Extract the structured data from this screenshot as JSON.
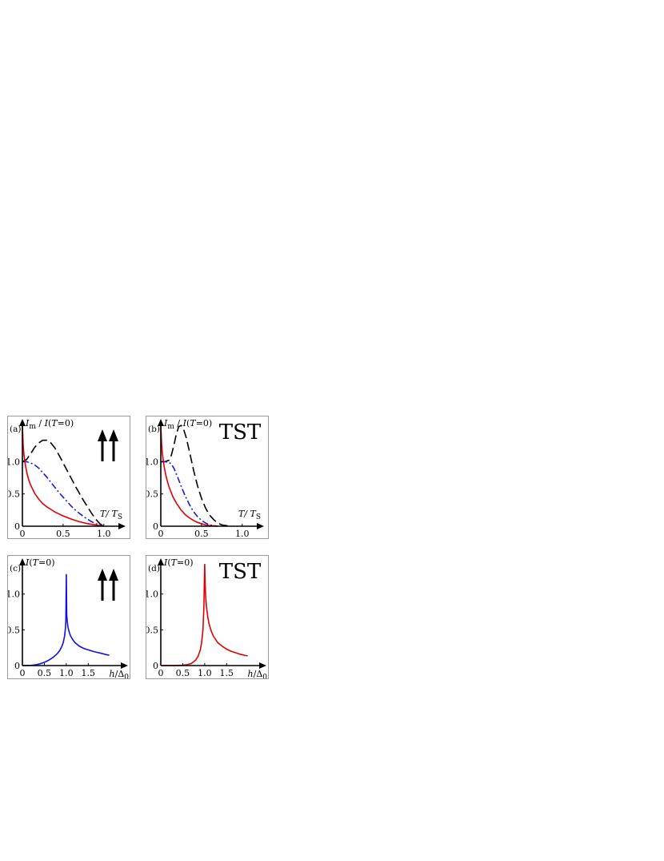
{
  "chart_data": [
    {
      "type": "line",
      "panel_label": "(a)",
      "ylabel": "I_m / I(T=0)",
      "xlabel": "T/ T_S",
      "xticks": [
        "0",
        "0.5",
        "1.0"
      ],
      "yticks": [
        "0",
        "0.5",
        "1.0"
      ],
      "xlim": [
        0,
        1.12
      ],
      "ylim": [
        0,
        1.55
      ],
      "annotation": "↑↑",
      "series": [
        {
          "color": "#000000",
          "dash": "dashed",
          "x": [
            0,
            0.05,
            0.1,
            0.15,
            0.2,
            0.25,
            0.3,
            0.35,
            0.4,
            0.45,
            0.5,
            0.55,
            0.6,
            0.65,
            0.7,
            0.75,
            0.8,
            0.85,
            0.9,
            0.95,
            1.0
          ],
          "y": [
            1.0,
            1.03,
            1.12,
            1.22,
            1.29,
            1.33,
            1.33,
            1.29,
            1.21,
            1.1,
            0.98,
            0.86,
            0.74,
            0.62,
            0.51,
            0.4,
            0.3,
            0.2,
            0.11,
            0.04,
            0
          ]
        },
        {
          "color": "#1a1adf",
          "dash": "dashdot",
          "x": [
            0,
            0.05,
            0.1,
            0.15,
            0.2,
            0.25,
            0.3,
            0.35,
            0.4,
            0.45,
            0.5,
            0.55,
            0.6,
            0.65,
            0.7,
            0.75,
            0.8,
            0.85,
            0.9,
            0.95,
            1.0
          ],
          "y": [
            1.0,
            1.0,
            0.98,
            0.95,
            0.9,
            0.83,
            0.76,
            0.68,
            0.6,
            0.52,
            0.45,
            0.38,
            0.31,
            0.25,
            0.2,
            0.15,
            0.11,
            0.07,
            0.04,
            0.02,
            0
          ]
        },
        {
          "color": "#e00000",
          "dash": "solid",
          "x": [
            0,
            0.01,
            0.02,
            0.04,
            0.06,
            0.08,
            0.1,
            0.15,
            0.2,
            0.25,
            0.3,
            0.35,
            0.4,
            0.5,
            0.6,
            0.7,
            0.8,
            0.9,
            1.0
          ],
          "y": [
            1.55,
            1.25,
            1.1,
            0.92,
            0.8,
            0.71,
            0.64,
            0.51,
            0.42,
            0.35,
            0.3,
            0.26,
            0.22,
            0.16,
            0.11,
            0.07,
            0.04,
            0.02,
            0
          ]
        }
      ]
    },
    {
      "type": "line",
      "panel_label": "(b)",
      "ylabel": "I_m / I(T=0)",
      "xlabel": "T/ T_S",
      "xticks": [
        "0",
        "0.5",
        "1.0"
      ],
      "yticks": [
        "0",
        "0.5",
        "1.0"
      ],
      "xlim": [
        0,
        1.12
      ],
      "ylim": [
        0,
        1.55
      ],
      "annotation": "TST",
      "series": [
        {
          "color": "#000000",
          "dash": "dashed",
          "x": [
            0,
            0.05,
            0.1,
            0.13,
            0.16,
            0.19,
            0.22,
            0.25,
            0.28,
            0.31,
            0.34,
            0.37,
            0.4,
            0.45,
            0.5,
            0.55,
            0.6,
            0.65,
            0.7,
            0.75,
            0.8,
            0.85
          ],
          "y": [
            1.0,
            1.0,
            1.02,
            1.1,
            1.25,
            1.42,
            1.54,
            1.56,
            1.5,
            1.38,
            1.22,
            1.05,
            0.88,
            0.63,
            0.43,
            0.28,
            0.17,
            0.1,
            0.05,
            0.02,
            0.01,
            0
          ]
        },
        {
          "color": "#1a1adf",
          "dash": "dashdot",
          "x": [
            0,
            0.05,
            0.1,
            0.13,
            0.16,
            0.2,
            0.25,
            0.3,
            0.35,
            0.4,
            0.45,
            0.5,
            0.55,
            0.6,
            0.65,
            0.7
          ],
          "y": [
            1.0,
            1.0,
            0.99,
            0.96,
            0.9,
            0.78,
            0.62,
            0.47,
            0.34,
            0.23,
            0.15,
            0.09,
            0.05,
            0.02,
            0.01,
            0
          ]
        },
        {
          "color": "#e00000",
          "dash": "solid",
          "x": [
            0,
            0.01,
            0.02,
            0.04,
            0.06,
            0.08,
            0.1,
            0.15,
            0.2,
            0.25,
            0.3,
            0.35,
            0.4,
            0.45,
            0.5,
            0.55,
            0.6,
            0.65,
            0.7
          ],
          "y": [
            1.55,
            1.28,
            1.12,
            0.93,
            0.8,
            0.7,
            0.61,
            0.45,
            0.34,
            0.25,
            0.18,
            0.13,
            0.09,
            0.06,
            0.04,
            0.02,
            0.01,
            0.005,
            0
          ]
        }
      ]
    },
    {
      "type": "line",
      "panel_label": "(c)",
      "ylabel": "I(T=0)",
      "xlabel": "h/Δ_0",
      "xticks": [
        "0",
        "0.5",
        "1.0",
        "1.5"
      ],
      "yticks": [
        "0",
        "0.5",
        "1.0"
      ],
      "xlim": [
        0,
        1.95
      ],
      "ylim": [
        0,
        1.4
      ],
      "annotation": "↑↑",
      "series": [
        {
          "color": "#1010e0",
          "dash": "solid",
          "x": [
            0,
            0.2,
            0.3,
            0.4,
            0.5,
            0.6,
            0.7,
            0.8,
            0.85,
            0.9,
            0.93,
            0.96,
            0.98,
            0.99,
            1.0,
            1.01,
            1.02,
            1.04,
            1.07,
            1.1,
            1.15,
            1.2,
            1.3,
            1.4,
            1.5,
            1.6,
            1.7,
            1.8,
            1.9,
            1.98
          ],
          "y": [
            0,
            0.003,
            0.01,
            0.025,
            0.045,
            0.075,
            0.115,
            0.17,
            0.21,
            0.27,
            0.32,
            0.41,
            0.52,
            0.62,
            1.28,
            0.72,
            0.62,
            0.53,
            0.46,
            0.41,
            0.36,
            0.32,
            0.27,
            0.24,
            0.22,
            0.2,
            0.185,
            0.17,
            0.155,
            0.145
          ]
        }
      ]
    },
    {
      "type": "line",
      "panel_label": "(d)",
      "ylabel": "I(T=0)",
      "xlabel": "h/Δ_0",
      "xticks": [
        "0",
        "0.5",
        "1.0",
        "1.5"
      ],
      "yticks": [
        "0",
        "0.5",
        "1.0"
      ],
      "xlim": [
        0,
        1.95
      ],
      "ylim": [
        0,
        1.4
      ],
      "annotation": "TST",
      "series": [
        {
          "color": "#e00000",
          "dash": "solid",
          "x": [
            0,
            0.3,
            0.5,
            0.6,
            0.7,
            0.8,
            0.85,
            0.9,
            0.93,
            0.96,
            0.98,
            0.99,
            1.0,
            1.01,
            1.02,
            1.04,
            1.07,
            1.1,
            1.15,
            1.2,
            1.3,
            1.4,
            1.5,
            1.6,
            1.7,
            1.8,
            1.9,
            1.98
          ],
          "y": [
            0,
            0.001,
            0.005,
            0.012,
            0.03,
            0.08,
            0.13,
            0.22,
            0.32,
            0.5,
            0.8,
            1.1,
            1.42,
            1.15,
            0.98,
            0.82,
            0.68,
            0.58,
            0.48,
            0.41,
            0.32,
            0.27,
            0.23,
            0.2,
            0.18,
            0.16,
            0.145,
            0.135
          ]
        }
      ]
    }
  ]
}
